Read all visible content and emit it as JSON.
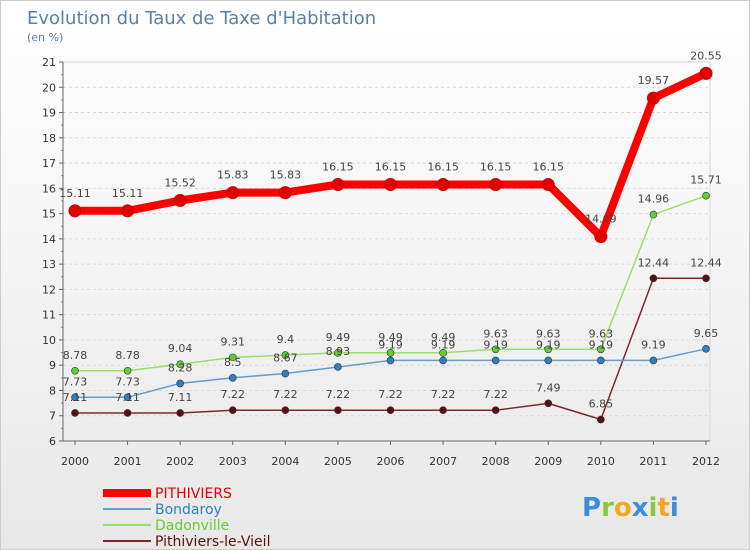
{
  "chart_data": {
    "type": "line",
    "title": "Evolution du Taux de Taxe d'Habitation",
    "subtitle": "(en %)",
    "xlabel": "",
    "ylabel": "",
    "ylim": [
      6,
      21
    ],
    "y_ticks": [
      "6",
      "7",
      "8",
      "9",
      "10",
      "11",
      "12",
      "13",
      "14",
      "15",
      "16",
      "17",
      "18",
      "19",
      "20",
      "21"
    ],
    "x": [
      "2000",
      "2001",
      "2002",
      "2003",
      "2004",
      "2005",
      "2006",
      "2007",
      "2008",
      "2009",
      "2010",
      "2011",
      "2012"
    ],
    "legend_position": "bottom-left",
    "series": [
      {
        "name": "PITHIVIERS",
        "color": "#ff0000",
        "marker_color": "#e00000",
        "values": [
          15.11,
          15.11,
          15.52,
          15.83,
          15.83,
          16.15,
          16.15,
          16.15,
          16.15,
          16.15,
          14.09,
          19.57,
          20.55
        ],
        "labels": [
          "15.11",
          "15.11",
          "15.52",
          "15.83",
          "15.83",
          "16.15",
          "16.15",
          "16.15",
          "16.15",
          "16.15",
          "14.09",
          "19.57",
          "20.55"
        ]
      },
      {
        "name": "Bondaroy",
        "color": "#6a9cc8",
        "marker_color": "#2e7fc4",
        "values": [
          7.73,
          7.73,
          8.28,
          8.5,
          8.67,
          8.93,
          9.19,
          9.19,
          9.19,
          9.19,
          9.19,
          9.19,
          9.65
        ],
        "labels": [
          "7.73",
          "7.73",
          "8.28",
          "8.5",
          "8.67",
          "8.93",
          "9.19",
          "9.19",
          "9.19",
          "9.19",
          "9.19",
          "9.19",
          "9.65"
        ]
      },
      {
        "name": "Dadonville",
        "color": "#99e06a",
        "marker_color": "#66cc33",
        "values": [
          8.78,
          8.78,
          9.04,
          9.31,
          9.4,
          9.49,
          9.49,
          9.49,
          9.63,
          9.63,
          9.63,
          14.96,
          15.71
        ],
        "labels": [
          "8.78",
          "8.78",
          "9.04",
          "9.31",
          "9.4",
          "9.49",
          "9.49",
          "9.49",
          "9.63",
          "9.63",
          "9.63",
          "14.96",
          "15.71"
        ]
      },
      {
        "name": "Pithiviers-le-Vieil",
        "color": "#7a2a2a",
        "marker_color": "#5a1010",
        "values": [
          7.11,
          7.11,
          7.11,
          7.22,
          7.22,
          7.22,
          7.22,
          7.22,
          7.22,
          7.49,
          6.85,
          12.44,
          12.44
        ],
        "labels": [
          "7.11",
          "7.11",
          "7.11",
          "7.22",
          "7.22",
          "7.22",
          "7.22",
          "7.22",
          "7.22",
          "7.49",
          "6.85",
          "12.44",
          "12.44"
        ]
      }
    ]
  },
  "logo": {
    "letters": [
      "P",
      "r",
      "o",
      "x",
      "i",
      "t",
      "i"
    ],
    "colors": [
      "#3a8fd8",
      "#8cc63f",
      "#f5a623",
      "#3a8fd8",
      "#8cc63f",
      "#f5a623",
      "#3a8fd8"
    ]
  }
}
